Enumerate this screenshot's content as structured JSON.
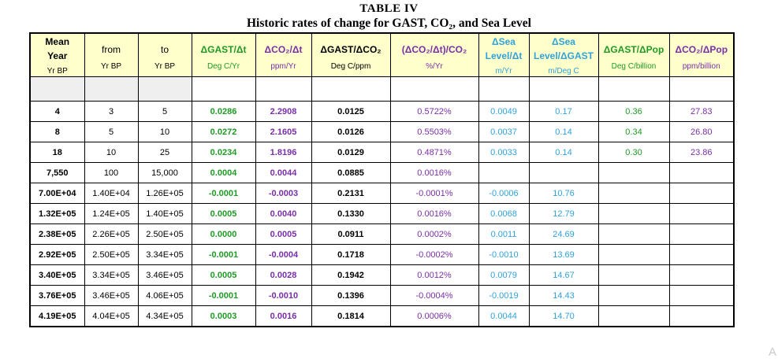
{
  "title": {
    "line1": "TABLE IV",
    "line2": "Historic rates of change for GAST, CO₂, and Sea Level"
  },
  "columns": [
    {
      "name": "Mean Year",
      "unit": "Yr BP",
      "color": "#000000"
    },
    {
      "name": "from",
      "unit": "Yr BP",
      "color": "#000000"
    },
    {
      "name": "to",
      "unit": "Yr BP",
      "color": "#000000"
    },
    {
      "name": "ΔGAST/Δt",
      "unit": "Deg C/Yr",
      "color": "#1f9a24"
    },
    {
      "name": "ΔCO₂/Δt",
      "unit": "ppm/Yr",
      "color": "#7a2ea8"
    },
    {
      "name": "ΔGAST/ΔCO₂",
      "unit": "Deg C/ppm",
      "color": "#000000"
    },
    {
      "name": "(ΔCO₂/Δt)/CO₂",
      "unit": "%/Yr",
      "color": "#7a2ea8"
    },
    {
      "name": "ΔSea Level/Δt",
      "unit": "m/Yr",
      "color": "#2ea2dc"
    },
    {
      "name": "ΔSea Level/ΔGAST",
      "unit": "m/Deg C",
      "color": "#2ea2dc"
    },
    {
      "name": "ΔGAST/ΔPop",
      "unit": "Deg C/billion",
      "color": "#1f9a24"
    },
    {
      "name": "ΔCO₂/ΔPop",
      "unit": "ppm/billion",
      "color": "#7a2ea8"
    }
  ],
  "header_lines": {
    "mean": [
      "Mean",
      "Year"
    ],
    "sea1": [
      "ΔSea",
      "Level/Δt"
    ],
    "sea2": [
      "ΔSea",
      "Level/ΔGAST"
    ]
  },
  "rows": [
    [
      "4",
      "3",
      "5",
      "0.0286",
      "2.2908",
      "0.0125",
      "0.5722%",
      "0.0049",
      "0.17",
      "0.36",
      "27.83"
    ],
    [
      "8",
      "5",
      "10",
      "0.0272",
      "2.1605",
      "0.0126",
      "0.5503%",
      "0.0037",
      "0.14",
      "0.34",
      "26.80"
    ],
    [
      "18",
      "10",
      "25",
      "0.0234",
      "1.8196",
      "0.0129",
      "0.4871%",
      "0.0033",
      "0.14",
      "0.30",
      "23.86"
    ],
    [
      "7,550",
      "100",
      "15,000",
      "0.0004",
      "0.0044",
      "0.0885",
      "0.0016%",
      "",
      "",
      "",
      ""
    ],
    [
      "7.00E+04",
      "1.40E+04",
      "1.26E+05",
      "-0.0001",
      "-0.0003",
      "0.2131",
      "-0.0001%",
      "-0.0006",
      "10.76",
      "",
      ""
    ],
    [
      "1.32E+05",
      "1.24E+05",
      "1.40E+05",
      "0.0005",
      "0.0040",
      "0.1330",
      "0.0016%",
      "0.0068",
      "12.79",
      "",
      ""
    ],
    [
      "2.38E+05",
      "2.26E+05",
      "2.50E+05",
      "0.0000",
      "0.0005",
      "0.0911",
      "0.0002%",
      "0.0011",
      "24.69",
      "",
      ""
    ],
    [
      "2.92E+05",
      "2.50E+05",
      "3.34E+05",
      "-0.0001",
      "-0.0004",
      "0.1718",
      "-0.0002%",
      "-0.0010",
      "13.69",
      "",
      ""
    ],
    [
      "3.40E+05",
      "3.34E+05",
      "3.46E+05",
      "0.0005",
      "0.0028",
      "0.1942",
      "0.0012%",
      "0.0079",
      "14.67",
      "",
      ""
    ],
    [
      "3.76E+05",
      "3.46E+05",
      "4.06E+05",
      "-0.0001",
      "-0.0010",
      "0.1396",
      "-0.0004%",
      "-0.0019",
      "14.43",
      "",
      ""
    ],
    [
      "4.19E+05",
      "4.04E+05",
      "4.34E+05",
      "0.0003",
      "0.0016",
      "0.1814",
      "0.0006%",
      "0.0044",
      "14.70",
      "",
      ""
    ]
  ],
  "watermark": "A"
}
